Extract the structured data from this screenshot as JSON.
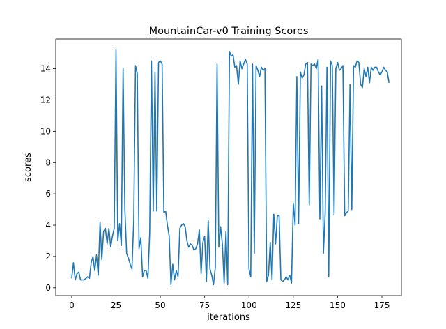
{
  "chart_data": {
    "type": "line",
    "title": "MountainCar-v0 Training Scores",
    "xlabel": "iterations",
    "ylabel": "scores",
    "xlim": [
      -9,
      186
    ],
    "ylim": [
      -0.5,
      15.9
    ],
    "xticks": [
      0,
      25,
      50,
      75,
      100,
      125,
      150,
      175
    ],
    "yticks": [
      0,
      2,
      4,
      6,
      8,
      10,
      12,
      14
    ],
    "grid": false,
    "legend": "none",
    "series_color": "#1f77b4",
    "series": [
      {
        "values": [
          0.6,
          1.6,
          0.5,
          0.9,
          1.0,
          0.5,
          0.5,
          0.5,
          0.6,
          0.7,
          0.6,
          1.6,
          2.0,
          1.1,
          2.1,
          0.8,
          4.2,
          1.8,
          3.6,
          3.8,
          2.8,
          3.8,
          2.6,
          3.3,
          3.8,
          15.2,
          3.0,
          4.1,
          2.7,
          14.0,
          5.0,
          2.2,
          1.9,
          1.5,
          1.2,
          4.3,
          14.2,
          13.7,
          2.5,
          3.2,
          0.7,
          1.1,
          1.1,
          0.6,
          3.5,
          14.5,
          4.9,
          13.8,
          4.9,
          14.4,
          14.5,
          14.3,
          4.8,
          4.9,
          4.0,
          3.3,
          0.2,
          1.5,
          0.5,
          1.1,
          0.7,
          3.8,
          4.0,
          4.1,
          3.9,
          3.0,
          2.6,
          2.8,
          2.7,
          2.4,
          2.5,
          2.8,
          3.7,
          0.9,
          2.9,
          3.3,
          0.4,
          4.3,
          1.2,
          0.8,
          0.2,
          1.3,
          14.3,
          2.6,
          3.9,
          2.8,
          0.3,
          3.6,
          0.2,
          15.1,
          14.8,
          14.9,
          14.1,
          14.2,
          13.0,
          14.5,
          14.0,
          14.3,
          14.6,
          14.3,
          1.2,
          0.7,
          14.3,
          2.2,
          14.2,
          13.9,
          13.5,
          14.1,
          13.9,
          14.0,
          0.4,
          0.8,
          2.9,
          0.5,
          4.7,
          2.8,
          4.6,
          4.6,
          0.5,
          0.4,
          0.5,
          0.7,
          0.5,
          0.8,
          0.3,
          5.4,
          4.0,
          13.5,
          4.1,
          13.8,
          13.4,
          13.6,
          14.3,
          14.4,
          5.3,
          14.3,
          14.2,
          14.3,
          14.0,
          14.6,
          4.4,
          12.9,
          2.2,
          4.8,
          14.1,
          0.7,
          14.5,
          14.2,
          4.7,
          14.0,
          14.4,
          13.9,
          14.0,
          14.2,
          4.6,
          4.8,
          4.9,
          13.0,
          5.0,
          14.2,
          14.1,
          14.5,
          14.4,
          13.0,
          12.8,
          14.0,
          13.5,
          14.1,
          13.1,
          14.1,
          13.9,
          14.1,
          14.1,
          13.8,
          13.6,
          13.8,
          14.1,
          13.9,
          13.8,
          13.1
        ]
      }
    ]
  }
}
